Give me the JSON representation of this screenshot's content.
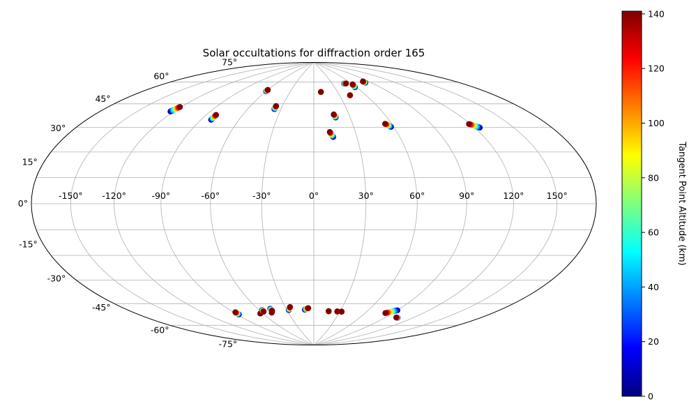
{
  "chart_data": {
    "type": "scatter",
    "projection": "hammer",
    "title": "Solar occultations for diffraction order 165",
    "grid": true,
    "x_ticks": [
      "-150°",
      "-120°",
      "-90°",
      "-60°",
      "-30°",
      "0°",
      "30°",
      "60°",
      "90°",
      "120°",
      "150°"
    ],
    "x_tick_values": [
      -150,
      -120,
      -90,
      -60,
      -30,
      0,
      30,
      60,
      90,
      120,
      150
    ],
    "y_ticks": [
      "-75°",
      "-60°",
      "-45°",
      "-30°",
      "-15°",
      "0°",
      "15°",
      "30°",
      "45°",
      "60°",
      "75°"
    ],
    "y_tick_values": [
      -75,
      -60,
      -45,
      -30,
      -15,
      0,
      15,
      30,
      45,
      60,
      75
    ],
    "xlim": [
      -180,
      180
    ],
    "ylim": [
      -90,
      90
    ],
    "colorbar": {
      "label": "Tangent Point Altitude (km)",
      "colormap": "jet",
      "range": [
        0,
        141
      ],
      "ticks": [
        "0",
        "20",
        "40",
        "60",
        "80",
        "100",
        "120",
        "140"
      ],
      "tick_values": [
        0,
        20,
        40,
        60,
        80,
        100,
        120,
        140
      ]
    },
    "tracks": [
      {
        "lon0": -123,
        "lat0": 48.5,
        "lon1": -121,
        "lat1": 51.5
      },
      {
        "lon0": -82,
        "lat0": 47,
        "lon1": -82,
        "lat1": 50
      },
      {
        "lon0": -60,
        "lat0": 67,
        "lon1": -60,
        "lat1": 68
      },
      {
        "lon0": -36,
        "lat0": 56,
        "lon1": -36,
        "lat1": 58
      },
      {
        "lon0": 9,
        "lat0": 68,
        "lon1": 9,
        "lat1": 68
      },
      {
        "lon0": 18,
        "lat0": 51,
        "lon1": 17,
        "lat1": 53
      },
      {
        "lon0": 13.5,
        "lat0": 39,
        "lon1": 11.5,
        "lat1": 42
      },
      {
        "lon0": 42,
        "lat0": 65,
        "lon1": 42,
        "lat1": 65
      },
      {
        "lon0": 49,
        "lat0": 73,
        "lon1": 52,
        "lat1": 73
      },
      {
        "lon0": 58,
        "lat0": 70,
        "lon1": 60,
        "lat1": 72
      },
      {
        "lon0": 82,
        "lat0": 72,
        "lon1": 82,
        "lat1": 73
      },
      {
        "lon0": 58,
        "lat0": 44,
        "lon1": 55,
        "lat1": 46
      },
      {
        "lon0": 124,
        "lat0": 39,
        "lon1": 119,
        "lat1": 41.5
      },
      {
        "lon0": -88,
        "lat0": -64,
        "lon1": -88,
        "lat1": -62.5
      },
      {
        "lon0": -63,
        "lat0": -65,
        "lon1": -63,
        "lat1": -65
      },
      {
        "lon0": -57,
        "lat0": -63,
        "lon1": -57,
        "lat1": -64
      },
      {
        "lon0": -49,
        "lat0": -65,
        "lon1": -49,
        "lat1": -65
      },
      {
        "lon0": -47,
        "lat0": -62.5,
        "lon1": -47,
        "lat1": -64
      },
      {
        "lon0": -28,
        "lat0": -64,
        "lon1": -25,
        "lat1": -62
      },
      {
        "lon0": -10,
        "lat0": -64,
        "lon1": -6,
        "lat1": -63
      },
      {
        "lon0": 17,
        "lat0": -65,
        "lon1": 17,
        "lat1": -65
      },
      {
        "lon0": 27,
        "lat0": -65,
        "lon1": 27,
        "lat1": -65
      },
      {
        "lon0": 32,
        "lat0": -65,
        "lon1": 32,
        "lat1": -65
      },
      {
        "lon0": 90,
        "lat0": -61,
        "lon1": 82,
        "lat1": -63.5
      },
      {
        "lon0": 104,
        "lat0": -65,
        "lon1": 102,
        "lat1": -65
      }
    ]
  }
}
